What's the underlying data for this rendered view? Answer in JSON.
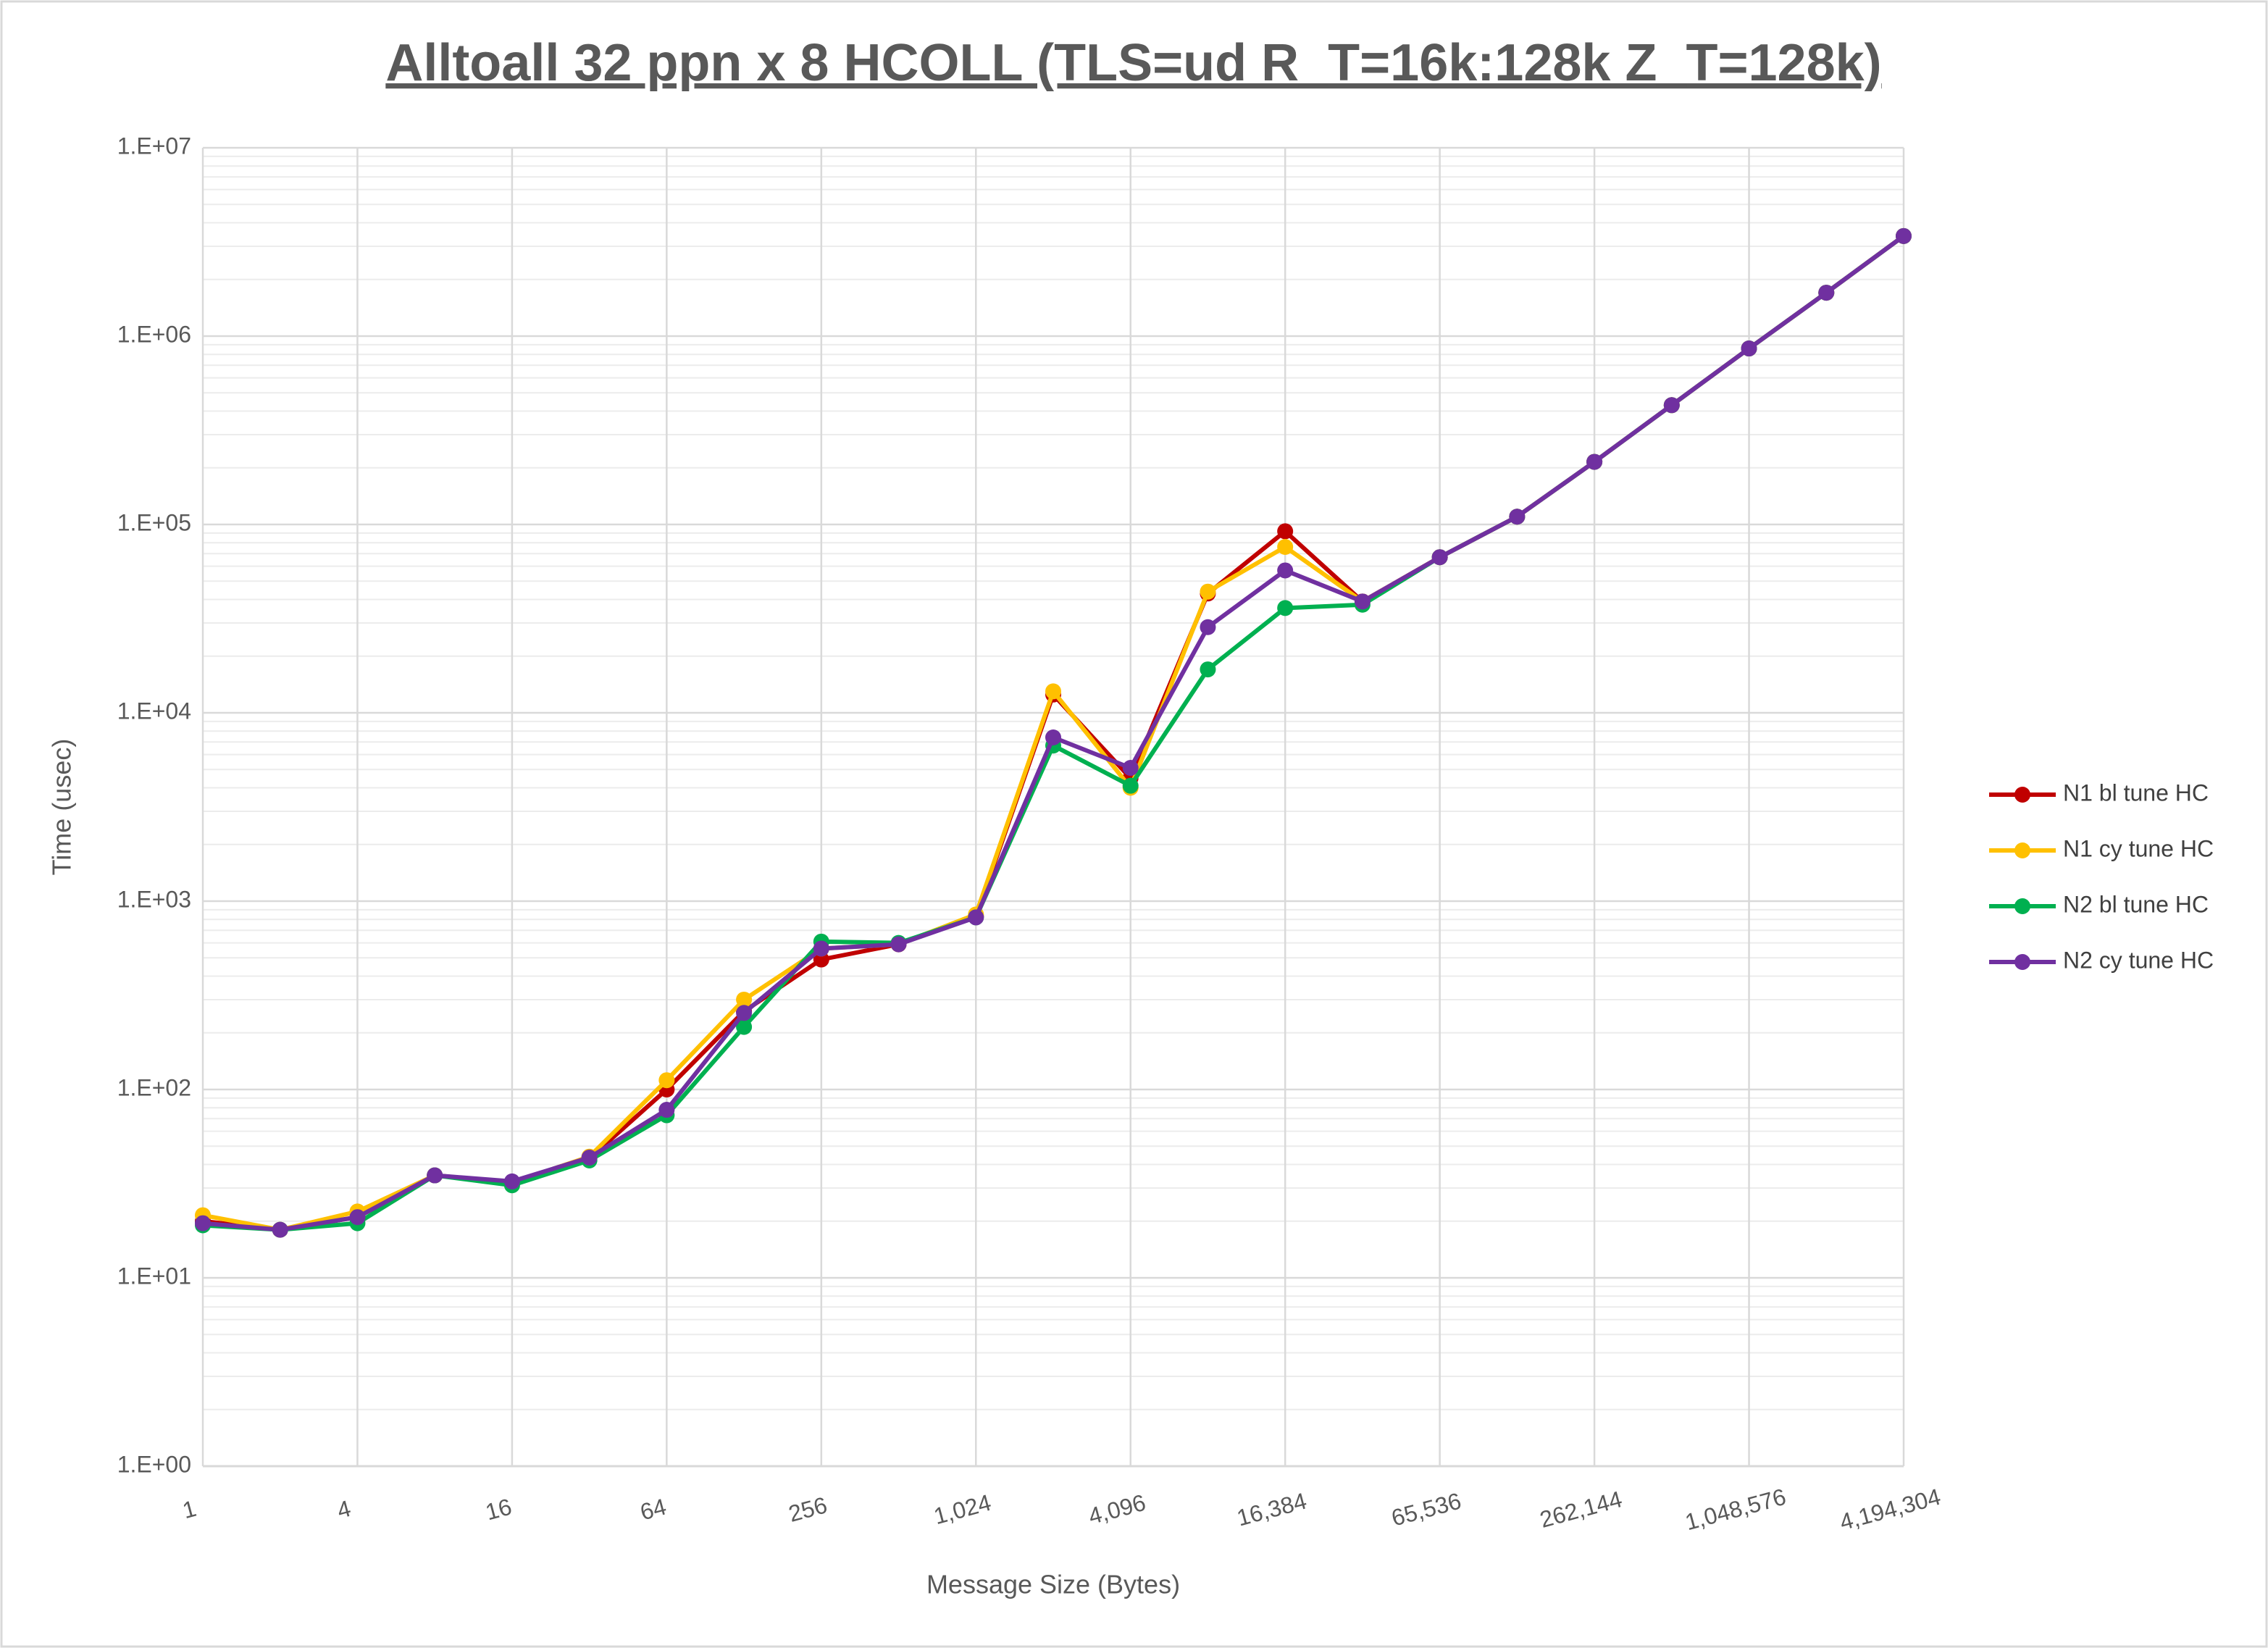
{
  "chart_data": {
    "type": "line",
    "title": "Alltoall 32 ppn x 8 HCOLL (TLS=ud R_T=16k:128k Z_T=128k)",
    "x_label": "Message Size (Bytes)",
    "y_label": "Time (usec)",
    "x": [
      1,
      2,
      4,
      8,
      16,
      32,
      64,
      128,
      256,
      512,
      1024,
      2048,
      4096,
      8192,
      16384,
      32768,
      65536,
      131072,
      262144,
      524288,
      1048576,
      2097152,
      4194304
    ],
    "x_scale": "log",
    "y_scale": "log",
    "grid": true,
    "legend": "right",
    "xlim": [
      1,
      4194304
    ],
    "xticks": [
      1,
      4,
      16,
      64,
      256,
      {
        "value": 1024,
        "label": "1,024"
      },
      {
        "value": 4096,
        "label": "4,096"
      },
      {
        "value": 16384,
        "label": "16,384"
      },
      {
        "value": 65536,
        "label": "65,536"
      },
      {
        "value": 262144,
        "label": "262,144"
      },
      {
        "value": 1048576,
        "label": "1,048,576"
      },
      {
        "value": 4194304,
        "label": "4,194,304"
      }
    ],
    "ylim": [
      1,
      10000000
    ],
    "yticks": [
      {
        "value": 1,
        "label": "1.E+00"
      },
      {
        "value": 10,
        "label": "1.E+01"
      },
      {
        "value": 100,
        "label": "1.E+02"
      },
      {
        "value": 1000,
        "label": "1.E+03"
      },
      {
        "value": 10000,
        "label": "1.E+04"
      },
      {
        "value": 100000,
        "label": "1.E+05"
      },
      {
        "value": 1000000,
        "label": "1.E+06"
      },
      {
        "value": 10000000,
        "label": "1.E+07"
      }
    ],
    "series": [
      {
        "name": "N1 bl tune HC",
        "color": "#c00000",
        "values": [
          20,
          18,
          21,
          35,
          32,
          43,
          100,
          260,
          490,
          590,
          830,
          12500,
          4500,
          43000,
          92000,
          39000,
          67000,
          110000,
          215000,
          430000,
          860000,
          1700000,
          3400000
        ]
      },
      {
        "name": "N1 cy tune HC",
        "color": "#ffc000",
        "values": [
          21.5,
          18,
          22.5,
          35,
          32,
          44,
          112,
          300,
          560,
          590,
          850,
          13000,
          4000,
          44000,
          76000,
          39000,
          67000,
          110000,
          215000,
          430000,
          860000,
          1700000,
          3400000
        ]
      },
      {
        "name": "N2 bl tune HC",
        "color": "#00b050",
        "values": [
          19,
          18,
          19.5,
          35,
          31,
          42,
          73,
          215,
          610,
          600,
          820,
          6700,
          4100,
          17000,
          36000,
          37500,
          67000,
          110000,
          215000,
          430000,
          860000,
          1700000,
          3400000
        ]
      },
      {
        "name": "N2 cy tune HC",
        "color": "#7030a0",
        "values": [
          19.5,
          18,
          21,
          35,
          32.5,
          43.5,
          78,
          255,
          560,
          590,
          820,
          7400,
          5100,
          28500,
          57000,
          39000,
          67000,
          110000,
          215000,
          430000,
          860000,
          1700000,
          3400000
        ]
      }
    ]
  }
}
